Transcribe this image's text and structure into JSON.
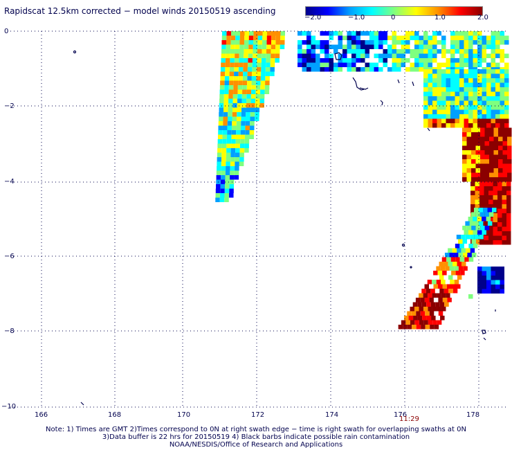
{
  "title": "Rapidscat 12.5km corrected − model winds 20150519 ascending",
  "colorbar": {
    "labels": [
      "−2.0",
      "−1.0",
      "0",
      "1.0",
      "2.0"
    ],
    "min": -2.0,
    "max": 2.0,
    "colors": [
      "#00008b",
      "#0000ff",
      "#00a0ff",
      "#00ffff",
      "#7fff7f",
      "#ffff00",
      "#ff9000",
      "#ff0000",
      "#8b0000"
    ]
  },
  "axes": {
    "y_labels": [
      "0",
      "−2",
      "−4",
      "−6",
      "−8",
      "−10"
    ],
    "x_labels": [
      "166",
      "168",
      "170",
      "172",
      "174",
      "176",
      "178"
    ],
    "grid": "dotted",
    "lon_range": [
      165,
      179
    ],
    "lat_range": [
      -10,
      0
    ]
  },
  "time_label": "11:29",
  "notes": [
    "Note: 1) Times are GMT 2)Times correspond to 0N at right swath edge − time is right swath for overlapping swaths at 0N",
    "3)Data buffer is 22 hrs for 20150519 4) Black barbs indicate possible rain contamination",
    "NOAA/NESDIS/Office of Research and Applications"
  ]
}
